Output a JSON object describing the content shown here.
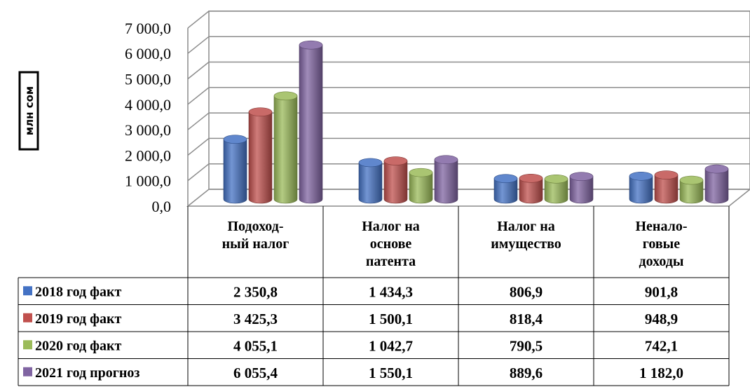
{
  "chart_data": {
    "type": "bar",
    "ylabel": "млн сом",
    "ylim": [
      0,
      7000
    ],
    "y_ticks": [
      "0,0",
      "1 000,0",
      "2 000,0",
      "3 000,0",
      "4 000,0",
      "5 000,0",
      "6 000,0",
      "7 000,0"
    ],
    "y_tick_values": [
      0,
      1000,
      2000,
      3000,
      4000,
      5000,
      6000,
      7000
    ],
    "grid": true,
    "categories": [
      [
        "Подоход-",
        "ный налог"
      ],
      [
        "Налог на",
        "основе",
        "патента"
      ],
      [
        "Налог на",
        "имущество"
      ],
      [
        "Ненало-",
        "говые",
        "доходы"
      ]
    ],
    "series": [
      {
        "name": "2018 год факт",
        "color": "#4472c4",
        "values": [
          2350.8,
          1434.3,
          806.9,
          901.8
        ],
        "labels": [
          "2 350,8",
          "1 434,3",
          "806,9",
          "901,8"
        ]
      },
      {
        "name": "2019 год факт",
        "color": "#c0504d",
        "values": [
          3425.3,
          1500.1,
          818.4,
          948.9
        ],
        "labels": [
          "3 425,3",
          "1 500,1",
          "818,4",
          "948,9"
        ]
      },
      {
        "name": "2020 год факт",
        "color": "#9bbb59",
        "values": [
          4055.1,
          1042.7,
          790.5,
          742.1
        ],
        "labels": [
          "4 055,1",
          "1 042,7",
          "790,5",
          "742,1"
        ]
      },
      {
        "name": "2021 год прогноз",
        "color": "#8064a2",
        "values": [
          6055.4,
          1550.1,
          889.6,
          1182.0
        ],
        "labels": [
          "6 055,4",
          "1 550,1",
          "889,6",
          "1 182,0"
        ]
      }
    ]
  }
}
